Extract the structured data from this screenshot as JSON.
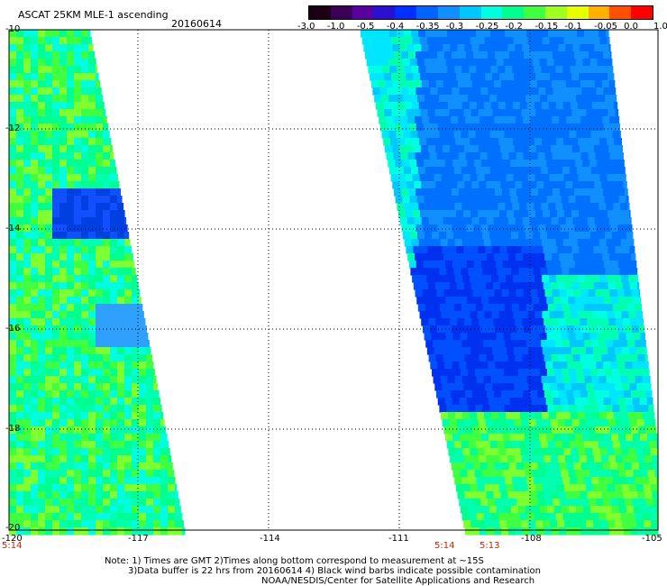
{
  "header": {
    "title": "ASCAT 25KM MLE-1 ascending",
    "date": "20160614"
  },
  "colorbar": {
    "colors": [
      "#1a0010",
      "#3a0058",
      "#5a00a0",
      "#2a10d0",
      "#0030ff",
      "#0064ff",
      "#1090ff",
      "#00c8ff",
      "#00ffe0",
      "#00ff90",
      "#40ff40",
      "#a0ff20",
      "#e8ff00",
      "#ffb000",
      "#ff5000",
      "#ff0000"
    ],
    "labels": [
      "-3.0",
      "-1.0",
      "-0.5",
      "-0.4",
      "-0.35",
      "-0.3",
      "-0.25",
      "-0.2",
      "-0.15",
      "-0.1",
      "-0.05",
      "0.0",
      "1.0"
    ]
  },
  "axes": {
    "lat_labels": [
      "-10",
      "-12",
      "-14",
      "-16",
      "-18",
      "-20"
    ],
    "lon_labels": [
      "-120",
      "-117",
      "-114",
      "-111",
      "-108",
      "-105"
    ]
  },
  "time_labels": {
    "left": "5:14",
    "mid_a": "5:14",
    "mid_b": "5:13"
  },
  "footer": {
    "line1": "Note: 1) Times are GMT 2)Times along bottom correspond to measurement at ~15S",
    "line2": "3)Data buffer is 22 hrs from 20160614 4) Black wind barbs indicate possible contamination",
    "line3": "NOAA/NESDIS/Center for Satellite Applications and Research"
  }
}
